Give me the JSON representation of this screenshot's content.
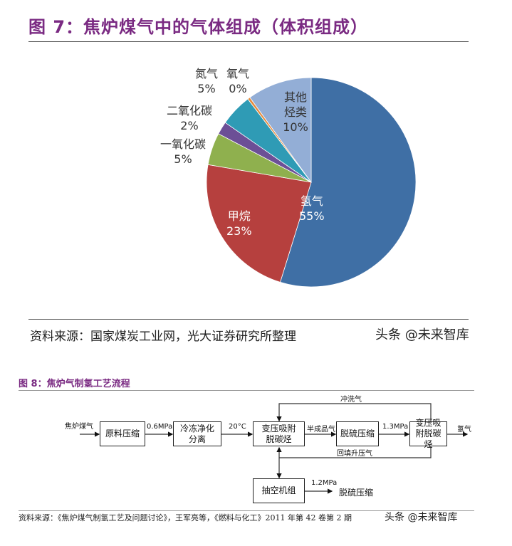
{
  "fig7": {
    "title": "图 7：焦炉煤气中的气体组成（体积组成）",
    "source": "资料来源：国家煤炭工业网，光大证券研究所整理",
    "watermark": "头条 @未来智库"
  },
  "chart_data": {
    "type": "pie",
    "title": "图 7：焦炉煤气中的气体组成（体积组成）",
    "start": "12 o'clock, clockwise",
    "slices": [
      {
        "name": "氢气",
        "value": 55,
        "label": "55%",
        "color": "#3f6fa5"
      },
      {
        "name": "甲烷",
        "value": 23,
        "label": "23%",
        "color": "#b6403e"
      },
      {
        "name": "一氧化碳",
        "value": 5,
        "label": "5%",
        "color": "#8fb04e"
      },
      {
        "name": "二氧化碳",
        "value": 2,
        "label": "2%",
        "color": "#6c4f96"
      },
      {
        "name": "氮气",
        "value": 5,
        "label": "5%",
        "color": "#2f9bb5"
      },
      {
        "name": "氧气",
        "value": 0.4,
        "label": "0%",
        "color": "#e58a3c"
      },
      {
        "name": "其他烃类",
        "value": 10,
        "label": "10%",
        "color": "#93aed6"
      }
    ]
  },
  "fig8": {
    "title": "图 8：焦炉气制氢工艺流程",
    "boxes": {
      "raw": "原料压缩",
      "cool": "冷冻净化分离",
      "psa1": "变压吸附脱碳烃",
      "desulf": "脱硫压缩",
      "psa2": "变压吸附脱碳烃",
      "vac": "抽空机组"
    },
    "labels": {
      "input": "焦炉煤气",
      "p06": "0.6MPa",
      "t20": "20°C",
      "semi": "半成品气",
      "p13": "1.3MPa",
      "h2": "氢气",
      "flush": "冲洗气",
      "backfill": "回填升压气",
      "p12": "1.2MPa",
      "desulf_out": "脱硫压缩"
    },
    "source": "资料来源：《焦炉煤气制氢工艺及问题讨论》，王军亮等，《燃料与化工》2011 年第 42 卷第 2 期",
    "watermark": "头条 @未来智库"
  }
}
